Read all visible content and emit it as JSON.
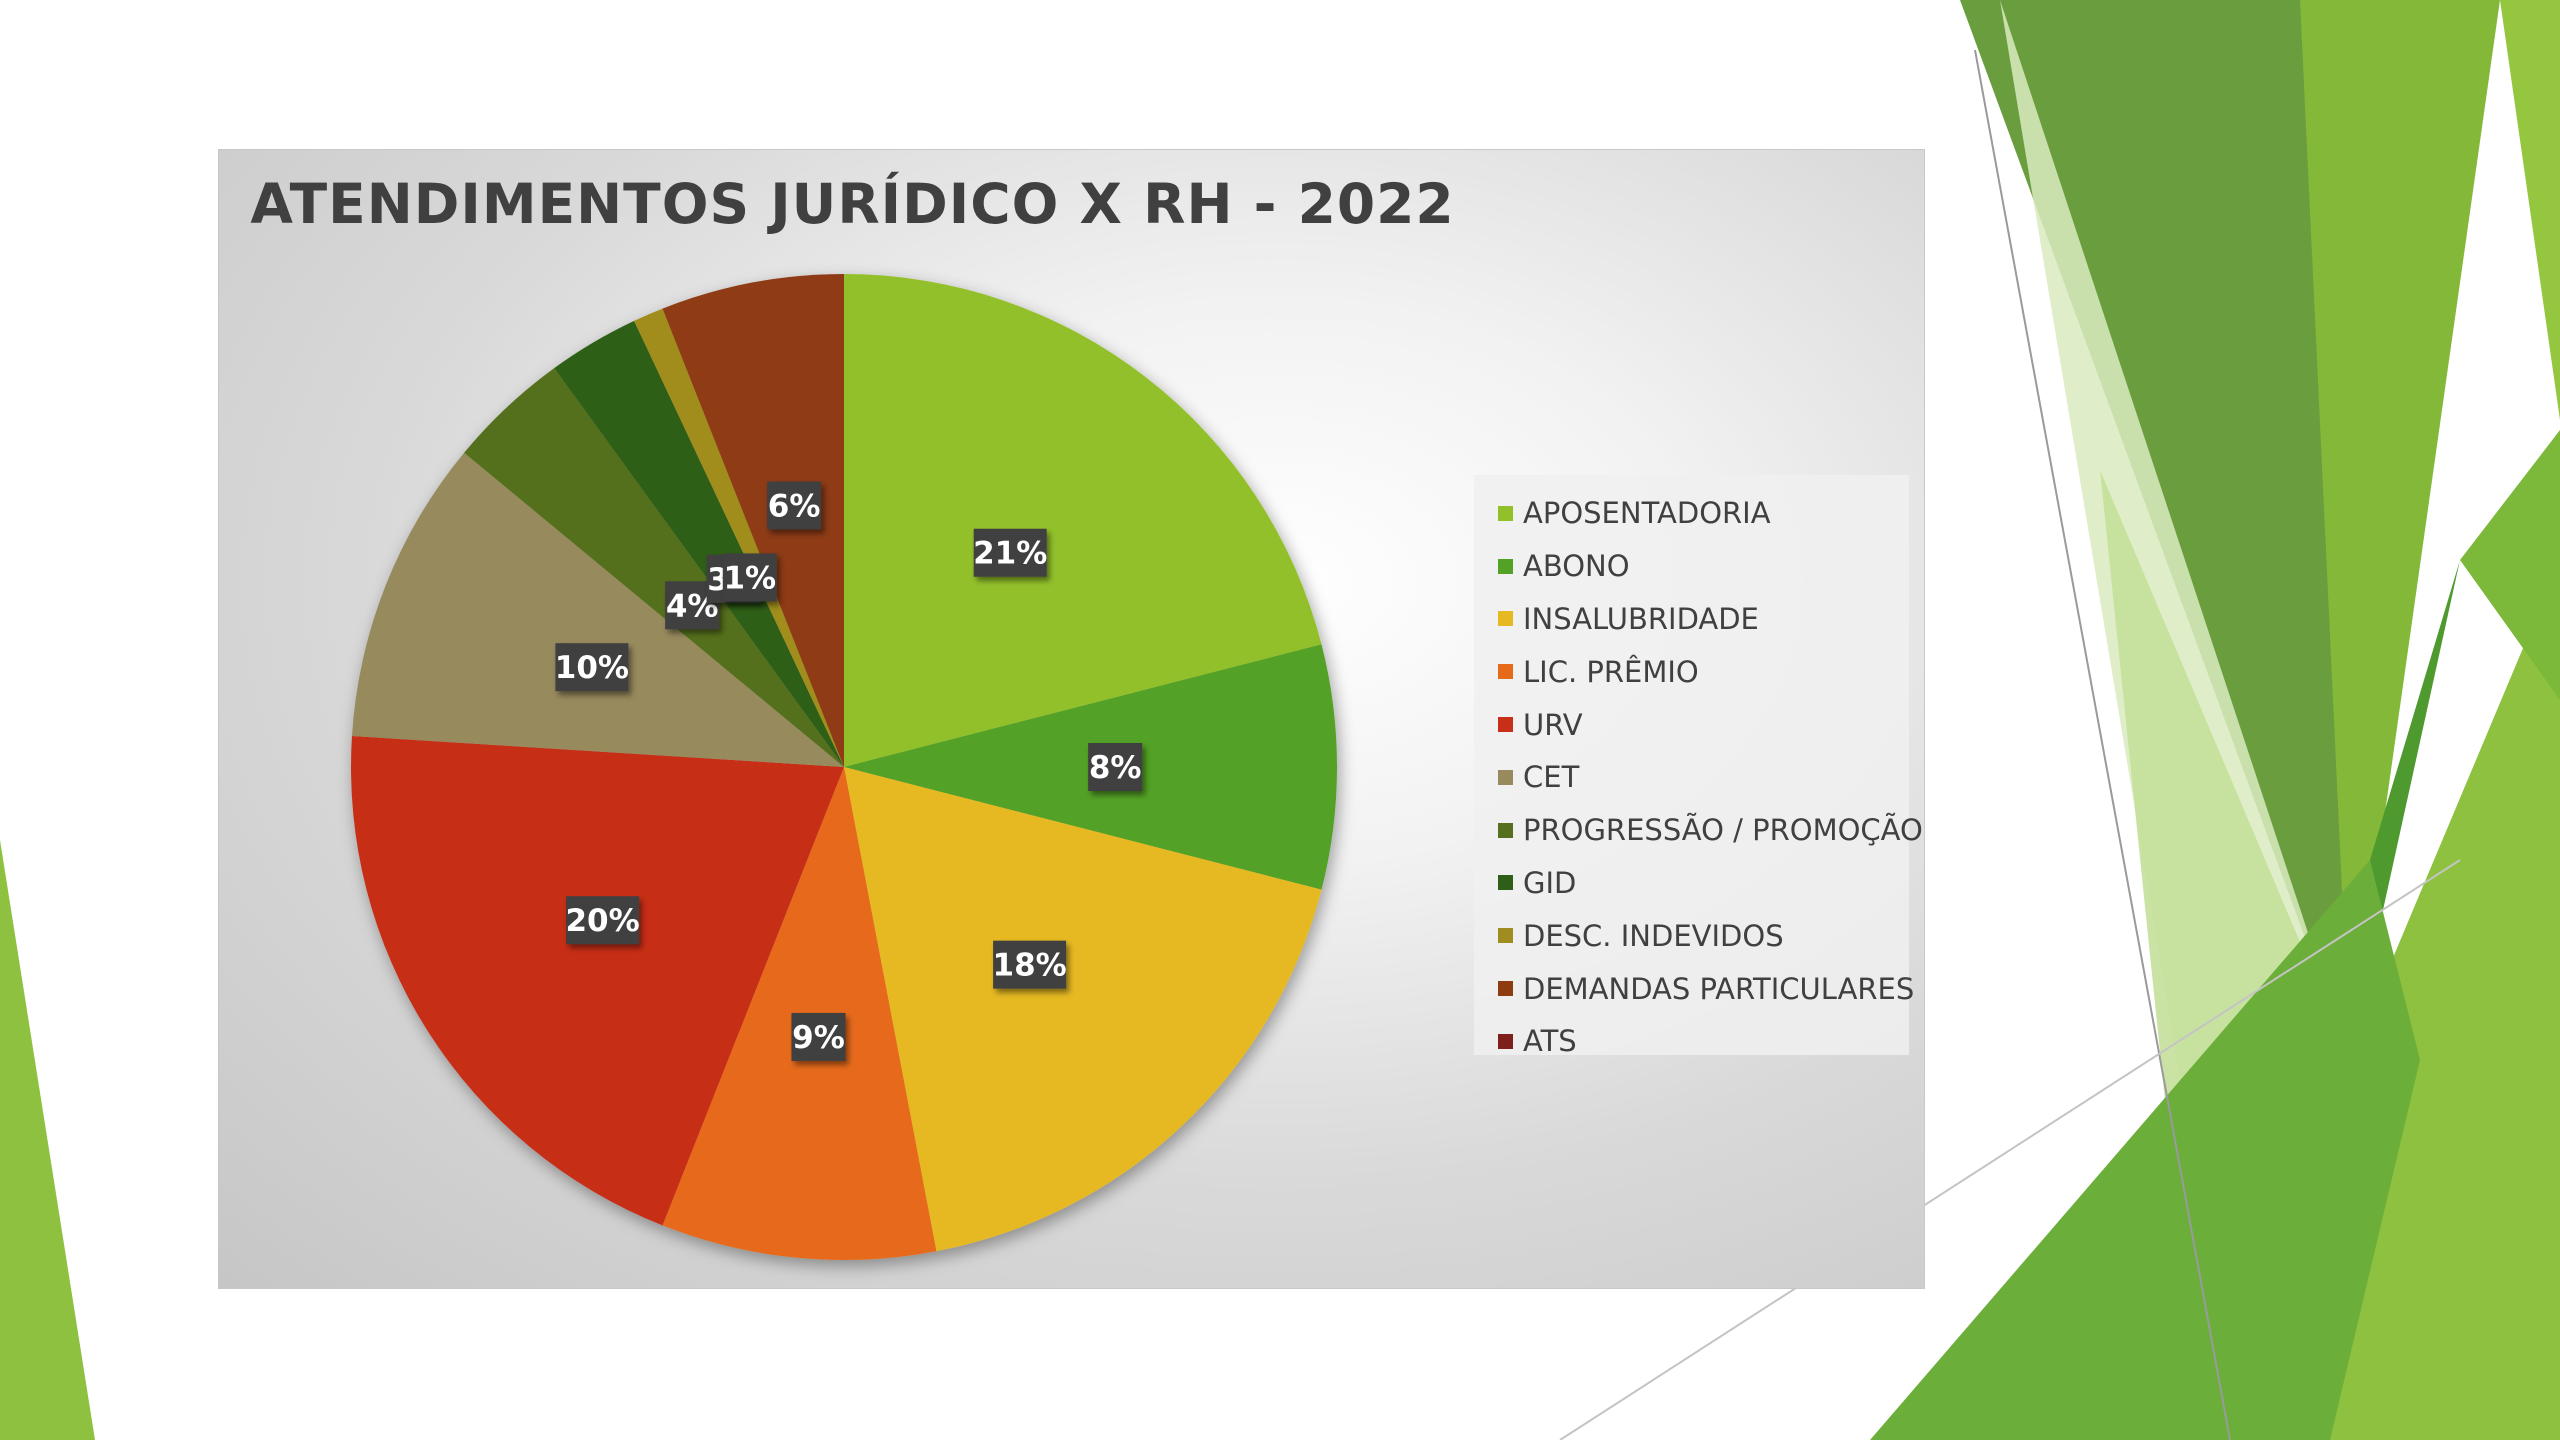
{
  "slide": {
    "accent_colors": [
      "#8dc13f",
      "#6a9d3e",
      "#4e9a2e",
      "#d6e8b8"
    ]
  },
  "chart_data": {
    "type": "pie",
    "title": "ATENDIMENTOS JURÍDICO X RH - 2022",
    "categories": [
      "APOSENTADORIA",
      "ABONO",
      "INSALUBRIDADE",
      "LIC. PRÊMIO",
      "URV",
      "CET",
      "PROGRESSÃO / PROMOÇÃO",
      "GID",
      "DESC. INDEVIDOS",
      "DEMANDAS PARTICULARES",
      "ATS"
    ],
    "values": [
      21,
      8,
      18,
      9,
      20,
      10,
      4,
      3,
      1,
      6,
      0
    ],
    "data_labels": [
      "21%",
      "8%",
      "18%",
      "9%",
      "20%",
      "10%",
      "4%",
      "3%",
      "1%",
      "6%",
      ""
    ],
    "colors": [
      "#92c02a",
      "#53a125",
      "#e6b923",
      "#e76a1a",
      "#c72f19",
      "#978a5c",
      "#556f1f",
      "#2f5e18",
      "#a08d1f",
      "#8e3b12",
      "#7d1f1a"
    ],
    "legend_position": "right"
  }
}
